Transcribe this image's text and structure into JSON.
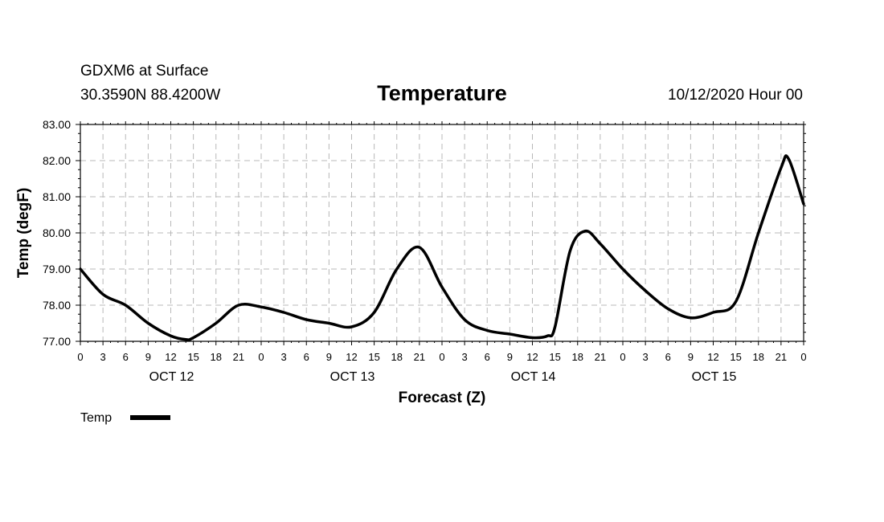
{
  "header": {
    "station": "GDXM6 at Surface",
    "location": "30.3590N 88.4200W",
    "title": "Temperature",
    "valid": "10/12/2020 Hour 00"
  },
  "chart_data": {
    "type": "line",
    "title": "Temperature",
    "xlabel": "Forecast (Z)",
    "ylabel": "Temp (degF)",
    "ylim": [
      77.0,
      83.0
    ],
    "xlim_hours": [
      0,
      96
    ],
    "y_ticks": [
      "77.00",
      "78.00",
      "79.00",
      "80.00",
      "81.00",
      "82.00",
      "83.00"
    ],
    "x_tick_labels": [
      "0",
      "3",
      "6",
      "9",
      "12",
      "15",
      "18",
      "21",
      "0",
      "3",
      "6",
      "9",
      "12",
      "15",
      "18",
      "21",
      "0",
      "3",
      "6",
      "9",
      "12",
      "15",
      "18",
      "21",
      "0",
      "3",
      "6",
      "9",
      "12",
      "15",
      "18",
      "21",
      "0"
    ],
    "day_labels": [
      {
        "label": "OCT 12",
        "hour": 12
      },
      {
        "label": "OCT 13",
        "hour": 36
      },
      {
        "label": "OCT 14",
        "hour": 60
      },
      {
        "label": "OCT 15",
        "hour": 84
      }
    ],
    "grid": true,
    "series": [
      {
        "name": "Temp",
        "x": [
          0,
          3,
          6,
          9,
          12,
          14,
          15,
          18,
          21,
          24,
          27,
          30,
          33,
          36,
          39,
          42,
          45,
          48,
          51,
          54,
          57,
          60,
          62,
          63,
          65,
          67,
          69,
          72,
          75,
          78,
          81,
          84,
          87,
          90,
          93,
          94,
          96
        ],
        "values": [
          79.0,
          78.3,
          78.0,
          77.5,
          77.15,
          77.05,
          77.1,
          77.5,
          78.0,
          77.95,
          77.8,
          77.6,
          77.5,
          77.4,
          77.8,
          79.0,
          79.6,
          78.5,
          77.6,
          77.3,
          77.2,
          77.1,
          77.15,
          77.4,
          79.5,
          80.05,
          79.7,
          79.0,
          78.4,
          77.9,
          77.65,
          77.8,
          78.1,
          80.0,
          81.8,
          82.05,
          80.8
        ]
      }
    ],
    "legend": [
      {
        "label": "Temp",
        "placement": "bottom-left"
      }
    ]
  }
}
